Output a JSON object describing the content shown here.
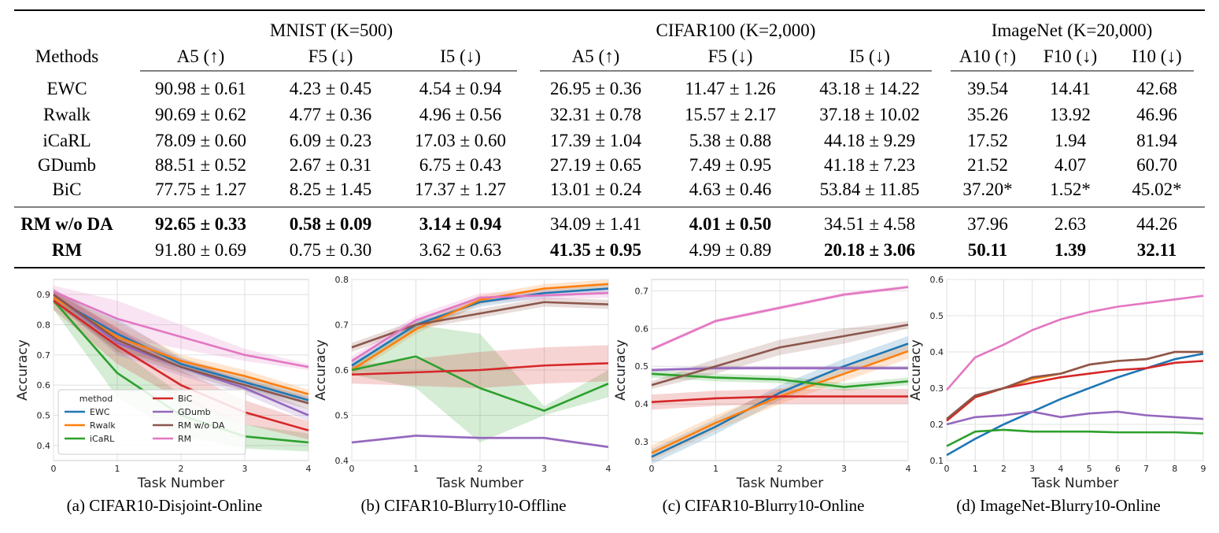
{
  "table": {
    "groups": [
      {
        "label": "MNIST (K=500)",
        "metrics": [
          "A5 (↑)",
          "F5 (↓)",
          "I5 (↓)"
        ]
      },
      {
        "label": "CIFAR100 (K=2,000)",
        "metrics": [
          "A5 (↑)",
          "F5 (↓)",
          "I5 (↓)"
        ]
      },
      {
        "label": "ImageNet (K=20,000)",
        "metrics": [
          "A10 (↑)",
          "F10 (↓)",
          "I10 (↓)"
        ]
      }
    ],
    "methods_header": "Methods",
    "rows": [
      {
        "method": "EWC",
        "cells": [
          "90.98 ± 0.61",
          "4.23 ± 0.45",
          "4.54 ± 0.94",
          "26.95 ± 0.36",
          "11.47 ± 1.26",
          "43.18 ± 14.22",
          "39.54",
          "14.41",
          "42.68"
        ],
        "bold": []
      },
      {
        "method": "Rwalk",
        "cells": [
          "90.69 ± 0.62",
          "4.77 ± 0.36",
          "4.96 ± 0.56",
          "32.31 ± 0.78",
          "15.57 ± 2.17",
          "37.18 ± 10.02",
          "35.26",
          "13.92",
          "46.96"
        ],
        "bold": []
      },
      {
        "method": "iCaRL",
        "cells": [
          "78.09 ± 0.60",
          "6.09 ± 0.23",
          "17.03 ± 0.60",
          "17.39 ± 1.04",
          "5.38 ± 0.88",
          "44.18 ± 9.29",
          "17.52",
          "1.94",
          "81.94"
        ],
        "bold": []
      },
      {
        "method": "GDumb",
        "cells": [
          "88.51 ± 0.52",
          "2.67 ± 0.31",
          "6.75 ± 0.43",
          "27.19 ± 0.65",
          "7.49 ± 0.95",
          "41.18 ± 7.23",
          "21.52",
          "4.07",
          "60.70"
        ],
        "bold": []
      },
      {
        "method": "BiC",
        "cells": [
          "77.75 ± 1.27",
          "8.25 ± 1.45",
          "17.37 ± 1.27",
          "13.01 ± 0.24",
          "4.63 ± 0.46",
          "53.84 ± 11.85",
          "37.20*",
          "1.52*",
          "45.02*"
        ],
        "bold": []
      },
      {
        "method": "RM w/o DA",
        "cells": [
          "92.65 ± 0.33",
          "0.58 ± 0.09",
          "3.14 ± 0.94",
          "34.09 ± 1.41",
          "4.01 ± 0.50",
          "34.51 ± 4.58",
          "37.96",
          "2.63",
          "44.26"
        ],
        "bold": [
          0,
          1,
          2,
          4
        ]
      },
      {
        "method": "RM",
        "cells": [
          "91.80 ± 0.69",
          "0.75 ± 0.30",
          "3.62 ± 0.63",
          "41.35 ± 0.95",
          "4.99 ± 0.89",
          "20.18 ± 3.06",
          "50.11",
          "1.39",
          "32.11"
        ],
        "bold": [
          3,
          5,
          6,
          7,
          8
        ]
      }
    ],
    "bold_methods": [
      "RM w/o DA",
      "RM"
    ]
  },
  "series_colors": {
    "EWC": "#1f77b4",
    "Rwalk": "#ff7f0e",
    "iCaRL": "#2ca02c",
    "BiC": "#d62728",
    "GDumb": "#9467bd",
    "RM w/o DA": "#8c564b",
    "RM": "#e377c2"
  },
  "legend": {
    "title": "method",
    "order": [
      "EWC",
      "Rwalk",
      "iCaRL",
      "BiC",
      "GDumb",
      "RM w/o DA",
      "RM"
    ]
  },
  "chart_data": [
    {
      "type": "line",
      "caption": "(a) CIFAR10-Disjoint-Online",
      "xlabel": "Task Number",
      "ylabel": "Accuracy",
      "x": [
        0,
        1,
        2,
        3,
        4
      ],
      "xlim": [
        0,
        4
      ],
      "ylim": [
        0.35,
        0.95
      ],
      "yticks": [
        0.4,
        0.5,
        0.6,
        0.7,
        0.8,
        0.9
      ],
      "grid": true,
      "legend_position": "lower-left",
      "series": [
        {
          "name": "EWC",
          "values": [
            0.89,
            0.77,
            0.67,
            0.61,
            0.55
          ],
          "band": [
            0.02,
            0.05,
            0.02,
            0.02,
            0.015
          ]
        },
        {
          "name": "Rwalk",
          "values": [
            0.89,
            0.76,
            0.68,
            0.63,
            0.57
          ],
          "band": [
            0.02,
            0.05,
            0.02,
            0.02,
            0.015
          ]
        },
        {
          "name": "iCaRL",
          "values": [
            0.88,
            0.64,
            0.5,
            0.43,
            0.41
          ],
          "band": [
            0.03,
            0.08,
            0.07,
            0.04,
            0.03
          ]
        },
        {
          "name": "BiC",
          "values": [
            0.88,
            0.73,
            0.6,
            0.51,
            0.45
          ],
          "band": [
            0.03,
            0.06,
            0.05,
            0.04,
            0.03
          ]
        },
        {
          "name": "GDumb",
          "values": [
            0.9,
            0.74,
            0.66,
            0.59,
            0.5
          ],
          "band": [
            0.02,
            0.04,
            0.03,
            0.02,
            0.02
          ]
        },
        {
          "name": "RM w/o DA",
          "values": [
            0.9,
            0.75,
            0.66,
            0.6,
            0.54
          ],
          "band": [
            0.02,
            0.04,
            0.02,
            0.02,
            0.02
          ]
        },
        {
          "name": "RM",
          "values": [
            0.91,
            0.82,
            0.76,
            0.7,
            0.66
          ],
          "band": [
            0.02,
            0.06,
            0.04,
            0.02,
            0.01
          ]
        }
      ]
    },
    {
      "type": "line",
      "caption": "(b) CIFAR10-Blurry10-Offline",
      "xlabel": "Task Number",
      "ylabel": "Accuracy",
      "x": [
        0,
        1,
        2,
        3,
        4
      ],
      "xlim": [
        0,
        4
      ],
      "ylim": [
        0.4,
        0.8
      ],
      "yticks": [
        0.4,
        0.5,
        0.6,
        0.7,
        0.8
      ],
      "grid": true,
      "series": [
        {
          "name": "EWC",
          "values": [
            0.61,
            0.7,
            0.75,
            0.77,
            0.78
          ],
          "band": [
            0.01,
            0.01,
            0.01,
            0.01,
            0.01
          ]
        },
        {
          "name": "Rwalk",
          "values": [
            0.6,
            0.69,
            0.755,
            0.78,
            0.79
          ],
          "band": [
            0.01,
            0.01,
            0.01,
            0.01,
            0.01
          ]
        },
        {
          "name": "iCaRL",
          "values": [
            0.6,
            0.63,
            0.56,
            0.51,
            0.57
          ],
          "band": [
            0.01,
            0.07,
            0.12,
            0.01,
            0.03
          ]
        },
        {
          "name": "BiC",
          "values": [
            0.59,
            0.595,
            0.6,
            0.61,
            0.615
          ],
          "band": [
            0.02,
            0.03,
            0.04,
            0.04,
            0.04
          ]
        },
        {
          "name": "GDumb",
          "values": [
            0.44,
            0.455,
            0.45,
            0.45,
            0.43
          ],
          "band": [
            0.003,
            0.003,
            0.003,
            0.003,
            0.003
          ]
        },
        {
          "name": "RM w/o DA",
          "values": [
            0.65,
            0.7,
            0.725,
            0.75,
            0.745
          ],
          "band": [
            0.01,
            0.01,
            0.01,
            0.01,
            0.01
          ]
        },
        {
          "name": "RM",
          "values": [
            0.62,
            0.71,
            0.76,
            0.765,
            0.77
          ],
          "band": [
            0.01,
            0.01,
            0.01,
            0.01,
            0.01
          ]
        }
      ]
    },
    {
      "type": "line",
      "caption": "(c) CIFAR10-Blurry10-Online",
      "xlabel": "Task Number",
      "ylabel": "Accuracy",
      "x": [
        0,
        1,
        2,
        3,
        4
      ],
      "xlim": [
        0,
        4
      ],
      "ylim": [
        0.25,
        0.73
      ],
      "yticks": [
        0.3,
        0.4,
        0.5,
        0.6,
        0.7
      ],
      "grid": true,
      "series": [
        {
          "name": "EWC",
          "values": [
            0.26,
            0.34,
            0.43,
            0.5,
            0.56
          ],
          "band": [
            0.02,
            0.02,
            0.02,
            0.02,
            0.02
          ]
        },
        {
          "name": "Rwalk",
          "values": [
            0.27,
            0.35,
            0.42,
            0.48,
            0.54
          ],
          "band": [
            0.02,
            0.02,
            0.02,
            0.02,
            0.02
          ]
        },
        {
          "name": "iCaRL",
          "values": [
            0.48,
            0.47,
            0.465,
            0.445,
            0.46
          ],
          "band": [
            0.01,
            0.01,
            0.01,
            0.01,
            0.01
          ]
        },
        {
          "name": "BiC",
          "values": [
            0.405,
            0.415,
            0.42,
            0.42,
            0.42
          ],
          "band": [
            0.02,
            0.02,
            0.02,
            0.02,
            0.02
          ]
        },
        {
          "name": "GDumb",
          "values": [
            0.49,
            0.495,
            0.495,
            0.495,
            0.495
          ],
          "band": [
            0.005,
            0.005,
            0.005,
            0.005,
            0.005
          ]
        },
        {
          "name": "RM w/o DA",
          "values": [
            0.45,
            0.5,
            0.55,
            0.58,
            0.61
          ],
          "band": [
            0.01,
            0.02,
            0.02,
            0.02,
            0.01
          ]
        },
        {
          "name": "RM",
          "values": [
            0.545,
            0.62,
            0.655,
            0.69,
            0.71
          ],
          "band": [
            0.005,
            0.005,
            0.005,
            0.005,
            0.005
          ]
        }
      ]
    },
    {
      "type": "line",
      "caption": "(d) ImageNet-Blurry10-Online",
      "xlabel": "Task Number",
      "ylabel": "Accuracy",
      "x": [
        0,
        1,
        2,
        3,
        4,
        5,
        6,
        7,
        8,
        9
      ],
      "xlim": [
        0,
        9
      ],
      "ylim": [
        0.1,
        0.6
      ],
      "yticks": [
        0.1,
        0.2,
        0.3,
        0.4,
        0.5,
        0.6
      ],
      "grid": true,
      "series": [
        {
          "name": "EWC",
          "values": [
            0.115,
            0.16,
            0.2,
            0.235,
            0.27,
            0.3,
            0.33,
            0.355,
            0.38,
            0.395
          ]
        },
        {
          "name": "Rwalk",
          "values": [
            0.21,
            0.275,
            0.3,
            0.325,
            0.34,
            0.365,
            0.375,
            0.38,
            0.4,
            0.4
          ]
        },
        {
          "name": "iCaRL",
          "values": [
            0.14,
            0.18,
            0.185,
            0.18,
            0.18,
            0.18,
            0.178,
            0.178,
            0.178,
            0.175
          ]
        },
        {
          "name": "BiC",
          "values": [
            0.21,
            0.275,
            0.3,
            0.315,
            0.33,
            0.34,
            0.35,
            0.355,
            0.37,
            0.375
          ]
        },
        {
          "name": "GDumb",
          "values": [
            0.2,
            0.22,
            0.225,
            0.235,
            0.22,
            0.23,
            0.235,
            0.225,
            0.22,
            0.215
          ]
        },
        {
          "name": "RM w/o DA",
          "values": [
            0.215,
            0.28,
            0.3,
            0.33,
            0.34,
            0.365,
            0.375,
            0.38,
            0.4,
            0.4
          ]
        },
        {
          "name": "RM",
          "values": [
            0.295,
            0.385,
            0.42,
            0.46,
            0.49,
            0.51,
            0.525,
            0.535,
            0.545,
            0.555
          ]
        }
      ]
    }
  ]
}
